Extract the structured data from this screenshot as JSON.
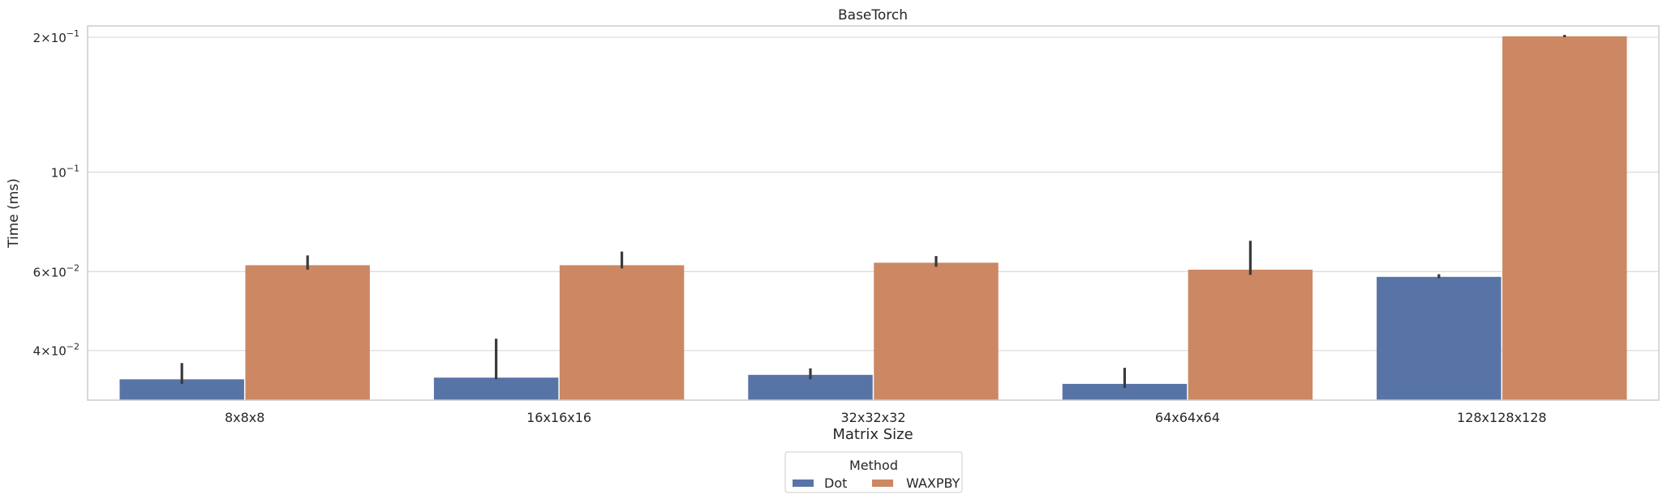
{
  "chart_data": {
    "type": "bar",
    "title": "BaseTorch",
    "xlabel": "Matrix Size",
    "ylabel": "Time (ms)",
    "yscale": "log",
    "ylim": [
      0.031,
      0.212
    ],
    "grid": "horizontal",
    "categories": [
      "8x8x8",
      "16x16x16",
      "32x32x32",
      "64x64x64",
      "128x128x128"
    ],
    "yticks": [
      {
        "value": 0.04,
        "base": "4",
        "exp": "−2"
      },
      {
        "value": 0.06,
        "base": "6",
        "exp": "−2"
      },
      {
        "value": 0.1,
        "base": "",
        "exp": "−1"
      },
      {
        "value": 0.2,
        "base": "2",
        "exp": "−1"
      }
    ],
    "series": [
      {
        "name": "Dot",
        "color": "#5874a6",
        "values": [
          0.0345,
          0.0348,
          0.0353,
          0.0337,
          0.0584
        ],
        "err_low": [
          0.0337,
          0.0345,
          0.0345,
          0.033,
          0.058
        ],
        "err_high": [
          0.0375,
          0.0425,
          0.0365,
          0.0366,
          0.0592
        ]
      },
      {
        "name": "WAXPBY",
        "color": "#cb8863",
        "values": [
          0.062,
          0.062,
          0.0628,
          0.0606,
          0.201
        ],
        "err_low": [
          0.0606,
          0.061,
          0.0615,
          0.059,
          0.2
        ],
        "err_high": [
          0.0652,
          0.0665,
          0.065,
          0.0703,
          0.2025
        ]
      }
    ],
    "legend": {
      "title": "Method",
      "placement": "bottom-center"
    }
  }
}
